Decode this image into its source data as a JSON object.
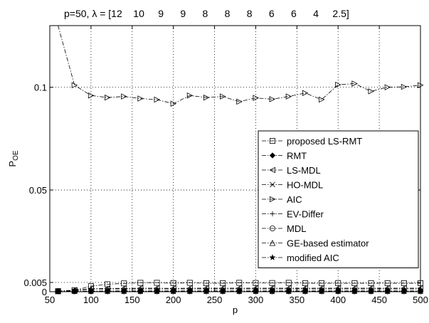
{
  "chart_data": {
    "type": "line",
    "title": "p=50, λ = [12    10     9      9      8      8      8      6      6      4     2.5]",
    "xlabel": "p",
    "ylabel": "P",
    "ylabel_subscript": "OE",
    "xlim": [
      50,
      500
    ],
    "ylim_display": [
      0,
      0.13
    ],
    "x_ticks": [
      50,
      100,
      150,
      200,
      250,
      300,
      350,
      400,
      450,
      500
    ],
    "x_tick_labels": [
      "50",
      "100",
      "150",
      "200",
      "250",
      "300",
      "350",
      "400",
      "450",
      "500"
    ],
    "y_ticks": [
      0,
      0.005,
      0.05,
      0.1
    ],
    "y_tick_labels": [
      "0",
      "0.005",
      "0.05",
      "0.1"
    ],
    "grid": true,
    "grid_style": "dotted",
    "legend_position": "bottom-right",
    "x": [
      60,
      80,
      100,
      120,
      140,
      160,
      180,
      200,
      220,
      240,
      260,
      280,
      300,
      320,
      340,
      360,
      380,
      400,
      420,
      440,
      460,
      480,
      500
    ],
    "series": [
      {
        "name": "proposed LS-RMT",
        "marker": "square",
        "values": [
          0.0003,
          0.0008,
          0.003,
          0.004,
          0.0045,
          0.0048,
          0.0048,
          0.0046,
          0.0048,
          0.0046,
          0.0046,
          0.0048,
          0.0047,
          0.0047,
          0.0048,
          0.0046,
          0.0046,
          0.0046,
          0.0046,
          0.0046,
          0.0046,
          0.0046,
          0.0046
        ]
      },
      {
        "name": "RMT",
        "marker": "diamond",
        "values": [
          0.0002,
          0.0003,
          0.0003,
          0.0004,
          0.0004,
          0.0004,
          0.0004,
          0.0004,
          0.0004,
          0.0004,
          0.0004,
          0.0004,
          0.0004,
          0.0004,
          0.0004,
          0.0004,
          0.0004,
          0.0004,
          0.0004,
          0.0004,
          0.0004,
          0.0004,
          0.0004
        ]
      },
      {
        "name": "LS-MDL",
        "marker": "triangle-left",
        "values": [
          0.0003,
          0.0008,
          0.0016,
          0.0018,
          0.0018,
          0.0019,
          0.0019,
          0.0018,
          0.0019,
          0.0019,
          0.0019,
          0.0019,
          0.0019,
          0.0019,
          0.0019,
          0.0019,
          0.0019,
          0.0019,
          0.0019,
          0.0019,
          0.0019,
          0.0019,
          0.0019
        ]
      },
      {
        "name": "HO-MDL",
        "marker": "x",
        "values": [
          0.0002,
          0.0003,
          0.0003,
          0.0003,
          0.0003,
          0.0003,
          0.0003,
          0.0003,
          0.0003,
          0.0003,
          0.0003,
          0.0003,
          0.0003,
          0.0003,
          0.0003,
          0.0003,
          0.0003,
          0.0003,
          0.0003,
          0.0003,
          0.0003,
          0.0003,
          0.0003
        ]
      },
      {
        "name": "AIC",
        "marker": "triangle-right",
        "values": [
          0.14,
          0.101,
          0.096,
          0.095,
          0.0955,
          0.0945,
          0.094,
          0.092,
          0.096,
          0.095,
          0.0955,
          0.093,
          0.0948,
          0.0942,
          0.0955,
          0.0972,
          0.094,
          0.1012,
          0.1018,
          0.098,
          0.1,
          0.1002,
          0.101
        ]
      },
      {
        "name": "EV-Differ",
        "marker": "plus",
        "values": [
          0.0002,
          0.0002,
          0.0002,
          0.0002,
          0.0002,
          0.0002,
          0.0002,
          0.0002,
          0.0002,
          0.0002,
          0.0002,
          0.0002,
          0.0002,
          0.0002,
          0.0002,
          0.0002,
          0.0002,
          0.0002,
          0.0002,
          0.0002,
          0.0002,
          0.0002,
          0.0002
        ]
      },
      {
        "name": "MDL",
        "marker": "circle",
        "values": [
          0.0002,
          0.0002,
          0.0002,
          0.0002,
          0.0002,
          0.0002,
          0.0002,
          0.0002,
          0.0002,
          0.0002,
          0.0002,
          0.0002,
          0.0002,
          0.0002,
          0.0002,
          0.0002,
          0.0002,
          0.0002,
          0.0002,
          0.0002,
          0.0002,
          0.0002,
          0.0002
        ]
      },
      {
        "name": "GE-based estimator",
        "marker": "triangle-up",
        "values": [
          0.0003,
          0.0006,
          0.0014,
          0.0015,
          0.0015,
          0.0015,
          0.0015,
          0.0015,
          0.0015,
          0.0015,
          0.0015,
          0.0015,
          0.0015,
          0.0015,
          0.0015,
          0.0015,
          0.0015,
          0.0015,
          0.0015,
          0.0015,
          0.0015,
          0.0015,
          0.0015
        ]
      },
      {
        "name": "modified AIC",
        "marker": "star",
        "values": [
          0.0002,
          0.0002,
          0.0002,
          0.0002,
          0.0002,
          0.0002,
          0.0002,
          0.0002,
          0.0002,
          0.0002,
          0.0002,
          0.0002,
          0.0002,
          0.0002,
          0.0002,
          0.0002,
          0.0002,
          0.0002,
          0.0002,
          0.0002,
          0.0002,
          0.0002,
          0.0002
        ]
      }
    ]
  }
}
